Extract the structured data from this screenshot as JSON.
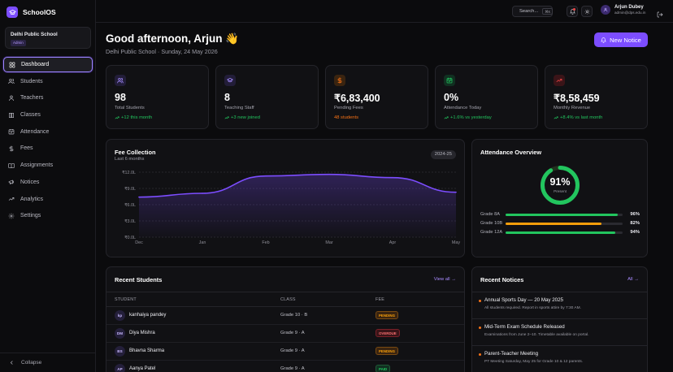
{
  "app": {
    "name": "SchoolOS"
  },
  "sidebar": {
    "school_name": "Delhi Public School",
    "role": "Admin",
    "items": [
      {
        "label": "Dashboard",
        "icon": "dashboard-icon",
        "active": true
      },
      {
        "label": "Students",
        "icon": "users-icon"
      },
      {
        "label": "Teachers",
        "icon": "teacher-icon"
      },
      {
        "label": "Classes",
        "icon": "book-icon"
      },
      {
        "label": "Attendance",
        "icon": "calendar-check-icon"
      },
      {
        "label": "Fees",
        "icon": "dollar-icon"
      },
      {
        "label": "Assignments",
        "icon": "book-open-icon"
      },
      {
        "label": "Notices",
        "icon": "megaphone-icon"
      },
      {
        "label": "Analytics",
        "icon": "chart-icon"
      },
      {
        "label": "Settings",
        "icon": "gear-icon"
      }
    ],
    "collapse_label": "Collapse"
  },
  "topbar": {
    "search_placeholder": "Search...",
    "search_shortcut": "⌘K",
    "user_name": "Arjun Dubey",
    "user_email": "admin@dps.edu.in"
  },
  "header": {
    "greeting": "Good afternoon, Arjun 👋",
    "subtitle": "Delhi Public School · Sunday, 24 May 2026",
    "new_notice_label": "New Notice"
  },
  "stats": [
    {
      "value": "98",
      "label": "Total Students",
      "trend": "+12 this month",
      "trend_color": "#22c55e",
      "trend_dir": "up",
      "icon": "users-icon",
      "icon_bg": "#221d38",
      "icon_color": "#a48bff"
    },
    {
      "value": "8",
      "label": "Teaching Staff",
      "trend": "+3 new joined",
      "trend_color": "#22c55e",
      "trend_dir": "up",
      "icon": "graduation-cap-icon",
      "icon_bg": "#221d38",
      "icon_color": "#a48bff"
    },
    {
      "value": "₹6,83,400",
      "label": "Pending Fees",
      "trend": "48 students",
      "trend_color": "#f97316",
      "trend_dir": "none",
      "icon": "dollar-icon",
      "icon_bg": "#3a2410",
      "icon_color": "#f97316"
    },
    {
      "value": "0%",
      "label": "Attendance Today",
      "trend": "+1.6% vs yesterday",
      "trend_color": "#22c55e",
      "trend_dir": "up",
      "icon": "calendar-check-icon",
      "icon_bg": "#113021",
      "icon_color": "#22c55e"
    },
    {
      "value": "₹8,58,459",
      "label": "Monthly Revenue",
      "trend": "+8.4% vs last month",
      "trend_color": "#22c55e",
      "trend_dir": "up",
      "icon": "trending-up-icon",
      "icon_bg": "#3a1418",
      "icon_color": "#ef4444"
    }
  ],
  "fee_panel": {
    "title": "Fee Collection",
    "subtitle": "Last 6 months",
    "year": "2024-25"
  },
  "chart_data": {
    "type": "area",
    "x": [
      "Dec",
      "Jan",
      "Feb",
      "Mar",
      "Apr",
      "May"
    ],
    "y_ticks": [
      "₹0.0L",
      "₹3.0L",
      "₹6.0L",
      "₹9.0L",
      "₹12.0L"
    ],
    "ylim": [
      0,
      12
    ],
    "values": [
      7.4,
      8.1,
      11.3,
      11.6,
      11.0,
      8.3
    ],
    "title": "Fee Collection",
    "xlabel": "",
    "ylabel": "",
    "grid": true,
    "color": "#7c4dff"
  },
  "attendance_panel": {
    "title": "Attendance Overview",
    "percent": 91,
    "percent_text": "91%",
    "center_label": "Present",
    "grades": [
      {
        "name": "Grade 8A",
        "value": 96,
        "value_text": "96%",
        "color": "#22c55e"
      },
      {
        "name": "Grade 10B",
        "value": 82,
        "value_text": "82%",
        "color": "#f59e0b"
      },
      {
        "name": "Grade 12A",
        "value": 94,
        "value_text": "94%",
        "color": "#22c55e"
      }
    ]
  },
  "students_panel": {
    "title": "Recent Students",
    "view_all": "View all →",
    "columns": [
      "STUDENT",
      "CLASS",
      "FEE"
    ],
    "rows": [
      {
        "initials": "kp",
        "name": "kanhaiya pandey",
        "class": "Grade 10 · B",
        "fee": "PENDING",
        "fee_status": "pending"
      },
      {
        "initials": "DM",
        "name": "Diya Mishra",
        "class": "Grade 9 · A",
        "fee": "OVERDUE",
        "fee_status": "overdue"
      },
      {
        "initials": "BS",
        "name": "Bhavna Sharma",
        "class": "Grade 9 · A",
        "fee": "PENDING",
        "fee_status": "pending"
      },
      {
        "initials": "AP",
        "name": "Aanya Patel",
        "class": "Grade 9 · A",
        "fee": "PAID",
        "fee_status": "paid"
      }
    ]
  },
  "notices_panel": {
    "title": "Recent Notices",
    "all_link": "All →",
    "items": [
      {
        "title": "Annual Sports Day — 20 May 2025",
        "body": "All students required. Report in sports attire by 7:30 AM."
      },
      {
        "title": "Mid-Term Exam Schedule Released",
        "body": "Examinations from June 2–10. Timetable available on portal."
      },
      {
        "title": "Parent-Teacher Meeting",
        "body": "PT Meeting Saturday, May 25 for Grade 10 & 12 parents."
      }
    ]
  }
}
